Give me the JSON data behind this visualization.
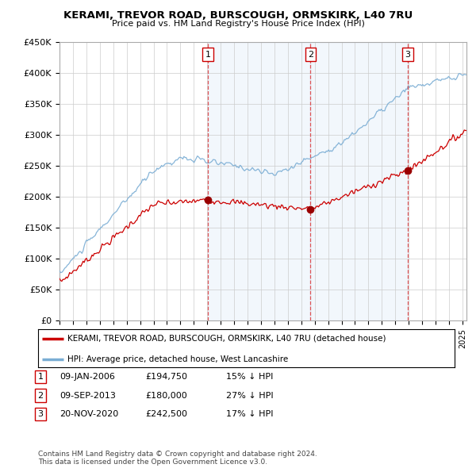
{
  "title": "KERAMI, TREVOR ROAD, BURSCOUGH, ORMSKIRK, L40 7RU",
  "subtitle": "Price paid vs. HM Land Registry's House Price Index (HPI)",
  "ylabel_ticks": [
    "£0",
    "£50K",
    "£100K",
    "£150K",
    "£200K",
    "£250K",
    "£300K",
    "£350K",
    "£400K",
    "£450K"
  ],
  "ylim": [
    0,
    450000
  ],
  "xlim_start": 1995.0,
  "xlim_end": 2025.3,
  "sale_dates": [
    2006.04,
    2013.69,
    2020.92
  ],
  "sale_prices": [
    194750,
    180000,
    242500
  ],
  "sale_labels": [
    "1",
    "2",
    "3"
  ],
  "legend_line1": "KERAMI, TREVOR ROAD, BURSCOUGH, ORMSKIRK, L40 7RU (detached house)",
  "legend_line2": "HPI: Average price, detached house, West Lancashire",
  "table_rows": [
    [
      "1",
      "09-JAN-2006",
      "£194,750",
      "15% ↓ HPI"
    ],
    [
      "2",
      "09-SEP-2013",
      "£180,000",
      "27% ↓ HPI"
    ],
    [
      "3",
      "20-NOV-2020",
      "£242,500",
      "17% ↓ HPI"
    ]
  ],
  "footer": "Contains HM Land Registry data © Crown copyright and database right 2024.\nThis data is licensed under the Open Government Licence v3.0.",
  "line_color_property": "#cc0000",
  "line_color_hpi": "#7aadd4",
  "vline_color": "#dd4444",
  "vfill_color": "#ddeeff",
  "grid_color": "#cccccc",
  "background_color": "#ffffff"
}
